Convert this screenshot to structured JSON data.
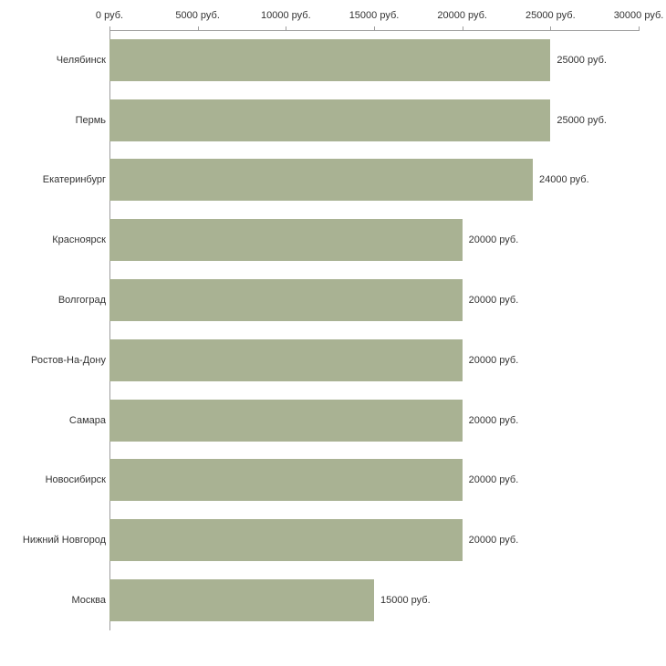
{
  "chart_data": {
    "type": "bar",
    "orientation": "horizontal",
    "title": "",
    "xlabel": "",
    "ylabel": "",
    "xlim": [
      0,
      30000
    ],
    "grid": false,
    "legend": false,
    "bar_color": "#a9b293",
    "axis_color": "#9e9e9e",
    "text_color": "#333333",
    "categories": [
      "Челябинск",
      "Пермь",
      "Екатеринбург",
      "Красноярск",
      "Волгоград",
      "Ростов-На-Дону",
      "Самара",
      "Новосибирск",
      "Нижний Новгород",
      "Москва"
    ],
    "values": [
      25000,
      25000,
      24000,
      20000,
      20000,
      20000,
      20000,
      20000,
      20000,
      15000
    ],
    "value_labels": [
      "25000 руб.",
      "25000 руб.",
      "24000 руб.",
      "20000 руб.",
      "20000 руб.",
      "20000 руб.",
      "20000 руб.",
      "20000 руб.",
      "20000 руб.",
      "15000 руб."
    ],
    "x_tick_values": [
      0,
      5000,
      10000,
      15000,
      20000,
      25000,
      30000
    ],
    "x_tick_labels": [
      "0 руб.",
      "5000 руб.",
      "10000 руб.",
      "15000 руб.",
      "20000 руб.",
      "25000 руб.",
      "30000 руб."
    ]
  }
}
